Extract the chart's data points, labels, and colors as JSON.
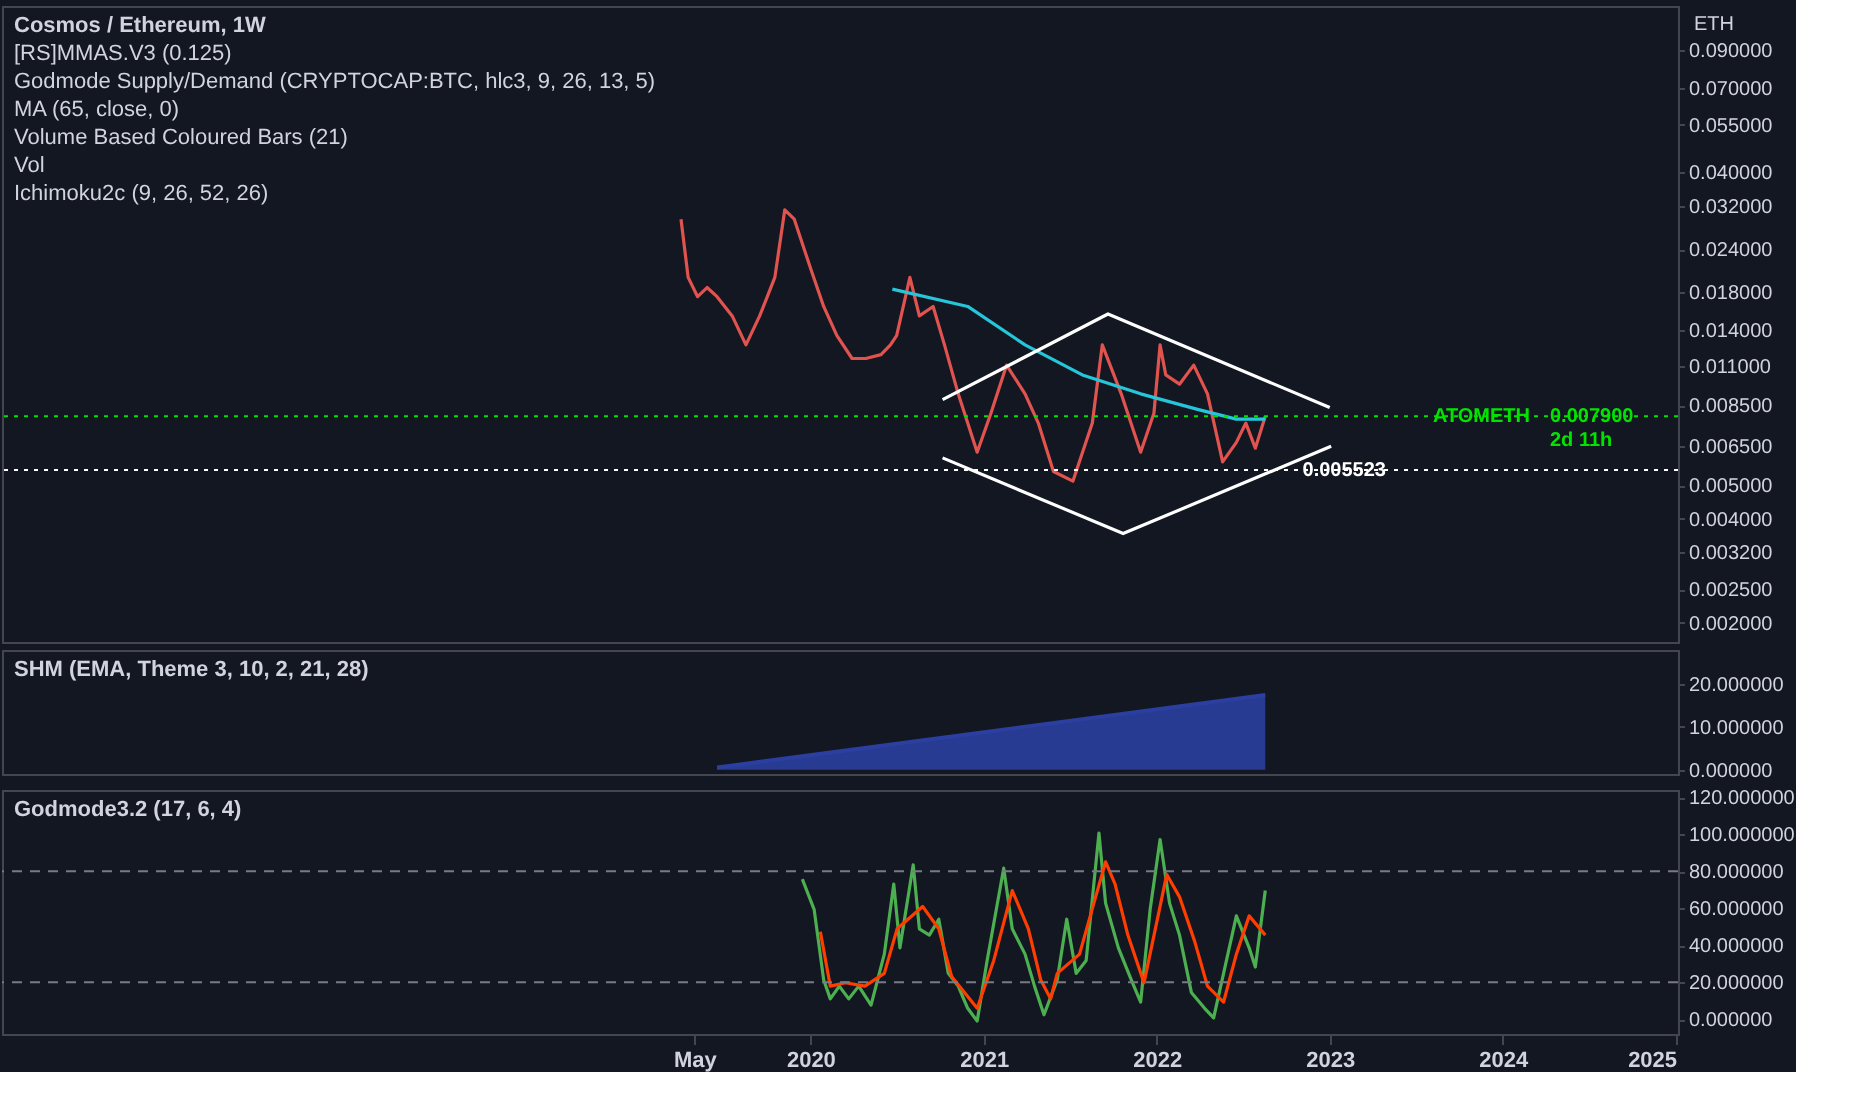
{
  "chart_data": [
    {
      "type": "line",
      "title": "Cosmos / Ethereum, 1W",
      "ylabel": "ETH",
      "log": "y",
      "tick_labels": "y",
      "grid": false,
      "annotations": [
        "[RS]MMAS.V3 (0.125)",
        "Godmode Supply/Demand (CRYPTOCAP:BTC, hlc3, 9, 26, 13, 5)",
        "MA (65, close, 0)",
        "Volume Based Coloured Bars (21)",
        "Vol",
        "Ichimoku2c (9, 26, 52, 26)",
        {
          "text": "0.007900",
          "y": 0.0079
        },
        {
          "text": "2d 11h",
          "y": 0.0079
        }
      ],
      "xlim": [
        "2015-05-01",
        "2025-01-05"
      ],
      "ylim": [
        0.00176,
        0.121
      ],
      "yticks": [
        {
          "value": 0.09,
          "label": "0.090000"
        },
        {
          "value": 0.07,
          "label": "0.070000"
        },
        {
          "value": 0.055,
          "label": "0.055000"
        },
        {
          "value": 0.04,
          "label": "0.040000"
        },
        {
          "value": 0.032,
          "label": "0.032000"
        },
        {
          "value": 0.024,
          "label": "0.024000"
        },
        {
          "value": 0.018,
          "label": "0.018000"
        },
        {
          "value": 0.014,
          "label": "0.014000"
        },
        {
          "value": 0.011,
          "label": "0.011000"
        },
        {
          "value": 0.0085,
          "label": "0.008500"
        },
        {
          "value": 0.0065,
          "label": "0.006500"
        },
        {
          "value": 0.005,
          "label": "0.005000"
        },
        {
          "value": 0.004,
          "label": "0.004000"
        },
        {
          "value": 0.0032,
          "label": "0.003200"
        },
        {
          "value": 0.0025,
          "label": "0.002500"
        },
        {
          "value": 0.002,
          "label": "0.002000"
        }
      ],
      "ref_lines": [
        {
          "axis": "y",
          "value": 0.0079,
          "label": "ATOMETH",
          "color": "#00e400",
          "line_style": "dotted"
        },
        {
          "axis": "y",
          "value": 0.005523,
          "label": "0.005523",
          "color": "#ffffff",
          "line_style": "dotted"
        }
      ],
      "series": [
        {
          "color": "#e0534f",
          "x": [
            "2019-04-03",
            "2019-04-18",
            "2019-05-08",
            "2019-05-28",
            "2019-06-18",
            "2019-07-20",
            "2019-08-18",
            "2019-09-16",
            "2019-10-18",
            "2019-11-08",
            "2019-11-28",
            "2020-01-01",
            "2020-01-29",
            "2020-02-26",
            "2020-03-29",
            "2020-04-27",
            "2020-05-29",
            "2020-06-18",
            "2020-07-01",
            "2020-07-29",
            "2020-08-18",
            "2020-09-16",
            "2020-10-10",
            "2020-11-08",
            "2020-12-18",
            "2021-01-16",
            "2021-02-18",
            "2021-03-29",
            "2021-04-26",
            "2021-05-28",
            "2021-07-08",
            "2021-08-18",
            "2021-09-08",
            "2021-10-18",
            "2021-11-28",
            "2021-12-26",
            "2022-01-08",
            "2022-01-20",
            "2022-02-18",
            "2022-03-20",
            "2022-04-18",
            "2022-05-20",
            "2022-06-18",
            "2022-07-08",
            "2022-07-28",
            "2022-08-18"
          ],
          "values": [
            0.0293,
            0.0199,
            0.0175,
            0.0186,
            0.0175,
            0.0154,
            0.0127,
            0.0154,
            0.0199,
            0.0312,
            0.0293,
            0.0212,
            0.0164,
            0.0135,
            0.0116,
            0.0116,
            0.0119,
            0.0127,
            0.0135,
            0.0199,
            0.0154,
            0.0164,
            0.0127,
            0.00917,
            0.00622,
            0.00806,
            0.0111,
            0.00917,
            0.00755,
            0.00547,
            0.00513,
            0.00755,
            0.0127,
            0.00917,
            0.00622,
            0.00806,
            0.0127,
            0.0104,
            0.00978,
            0.0111,
            0.00917,
            0.00583,
            0.00664,
            0.00755,
            0.00639,
            0.0079
          ]
        },
        {
          "color": "#26c6da",
          "x": [
            "2020-06-22",
            "2020-11-28",
            "2021-03-29",
            "2021-07-28",
            "2021-11-28",
            "2022-03-28",
            "2022-06-18",
            "2022-08-18"
          ],
          "values": [
            0.0184,
            0.0164,
            0.0127,
            0.0104,
            0.00917,
            0.00827,
            0.00775,
            0.00775
          ]
        },
        {
          "color": "#ffffff",
          "x": [
            "2020-10-06",
            "2021-09-20",
            "2023-01-01"
          ],
          "values": [
            0.00882,
            0.0156,
            0.00837
          ]
        },
        {
          "color": "#ffffff",
          "x": [
            "2020-10-06",
            "2021-10-22",
            "2023-01-04"
          ],
          "values": [
            0.00599,
            0.00362,
            0.00647
          ]
        }
      ]
    },
    {
      "type": "area",
      "title": "SHM (EMA, Theme 3, 10, 2, 21, 28)",
      "tick_labels": "y",
      "grid": false,
      "xlim": [
        "2015-05-01",
        "2025-01-05"
      ],
      "ylim": [
        -1,
        28
      ],
      "yticks": [
        {
          "value": 0,
          "label": "0.000000"
        },
        {
          "value": 10,
          "label": "10.000000"
        },
        {
          "value": 20,
          "label": "20.000000"
        }
      ],
      "series": [
        {
          "color": "#2a3fa0",
          "x": [
            "2019-06-18",
            "2022-08-18"
          ],
          "values": [
            0.5,
            17.5
          ]
        }
      ]
    },
    {
      "type": "line",
      "title": "Godmode3.2 (17, 6, 4)",
      "grid": false,
      "xlim": [
        "2015-05-01",
        "2025-01-05"
      ],
      "ylim": [
        -8,
        124
      ],
      "xticks": [
        {
          "value": "2019-05-01",
          "label": "May"
        },
        "2020",
        "2021",
        "2022",
        "2023",
        "2024",
        "2025"
      ],
      "yticks": [
        {
          "value": 0,
          "label": "0.000000"
        },
        {
          "value": 20,
          "label": "20.000000"
        },
        {
          "value": 40,
          "label": "40.000000"
        },
        {
          "value": 60,
          "label": "60.000000"
        },
        {
          "value": 80,
          "label": "80.000000"
        },
        {
          "value": 100,
          "label": "100.000000"
        },
        {
          "value": 120,
          "label": "120.000000"
        }
      ],
      "ref_lines": [
        {
          "axis": "y",
          "value": 80,
          "color": "#787b86",
          "line_style": "dashed"
        },
        {
          "axis": "y",
          "value": 20,
          "color": "#787b86",
          "line_style": "dashed"
        }
      ],
      "series": [
        {
          "color": "#4caf50",
          "x": [
            "2019-12-15",
            "2020-01-09",
            "2020-01-29",
            "2020-02-12",
            "2020-03-02",
            "2020-03-22",
            "2020-04-12",
            "2020-05-08",
            "2020-06-05",
            "2020-06-25",
            "2020-07-08",
            "2020-08-05",
            "2020-08-18",
            "2020-09-08",
            "2020-09-28",
            "2020-10-18",
            "2020-11-08",
            "2020-11-28",
            "2020-12-18",
            "2021-01-08",
            "2021-02-12",
            "2021-03-02",
            "2021-03-29",
            "2021-04-18",
            "2021-05-08",
            "2021-06-05",
            "2021-06-25",
            "2021-07-15",
            "2021-08-05",
            "2021-09-01",
            "2021-09-15",
            "2021-10-12",
            "2021-11-08",
            "2021-11-28",
            "2021-12-18",
            "2022-01-08",
            "2022-01-28",
            "2022-02-18",
            "2022-03-15",
            "2022-04-12",
            "2022-05-01",
            "2022-05-22",
            "2022-06-18",
            "2022-07-15",
            "2022-07-28",
            "2022-08-18"
          ],
          "values": [
            75.8,
            59.3,
            21.4,
            11.0,
            17.9,
            11.0,
            17.9,
            7.6,
            35.2,
            73.1,
            38.6,
            83.5,
            48.9,
            45.5,
            54.1,
            24.8,
            17.9,
            5.9,
            -1.0,
            31.8,
            81.7,
            48.9,
            35.2,
            17.9,
            2.4,
            21.4,
            54.1,
            24.8,
            31.8,
            100.7,
            62.8,
            38.6,
            21.4,
            9.3,
            59.3,
            97.2,
            62.8,
            45.5,
            14.5,
            5.9,
            0.7,
            24.8,
            55.9,
            38.6,
            28.2,
            69.6
          ]
        },
        {
          "color": "#ff3d00",
          "x": [
            "2020-01-22",
            "2020-02-12",
            "2020-03-15",
            "2020-04-25",
            "2020-06-05",
            "2020-07-02",
            "2020-08-25",
            "2020-09-28",
            "2020-10-25",
            "2020-12-18",
            "2021-01-22",
            "2021-03-02",
            "2021-04-05",
            "2021-05-01",
            "2021-05-22",
            "2021-06-05",
            "2021-07-22",
            "2021-08-25",
            "2021-09-15",
            "2021-10-05",
            "2021-11-01",
            "2021-12-05",
            "2022-01-08",
            "2022-01-22",
            "2022-02-18",
            "2022-03-22",
            "2022-04-18",
            "2022-05-22",
            "2022-06-18",
            "2022-07-15",
            "2022-08-18"
          ],
          "values": [
            47.3,
            17.9,
            19.7,
            17.9,
            24.8,
            48.9,
            61.0,
            48.9,
            23.1,
            5.9,
            31.8,
            69.6,
            48.9,
            21.4,
            11.0,
            24.8,
            35.2,
            66.2,
            85.1,
            73.1,
            45.5,
            19.7,
            61.0,
            78.3,
            66.2,
            42.1,
            17.9,
            9.3,
            35.2,
            55.9,
            45.5
          ]
        }
      ]
    }
  ]
}
